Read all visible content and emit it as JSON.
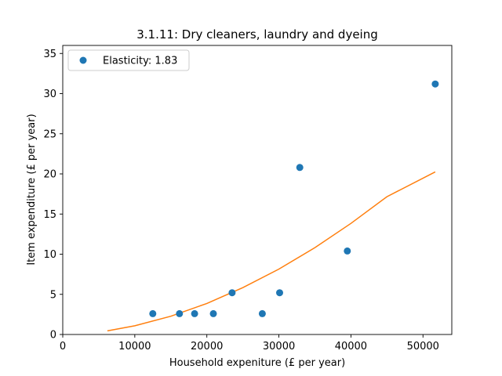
{
  "chart_data": {
    "type": "scatter",
    "title": "3.1.11: Dry cleaners, laundry and dyeing",
    "xlabel": "Household expeniture (£ per year)",
    "ylabel": "Item expenditure (£ per year)",
    "xlim": [
      0,
      54000
    ],
    "ylim": [
      0,
      36
    ],
    "xticks": [
      0,
      10000,
      20000,
      30000,
      40000,
      50000
    ],
    "yticks": [
      0,
      5,
      10,
      15,
      20,
      25,
      30,
      35
    ],
    "legend_position": "top-left",
    "colors": {
      "points": "#1f77b4",
      "fit": "#ff7f0e"
    },
    "series": [
      {
        "name": "Elasticity: 1.83",
        "type": "scatter",
        "x": [
          12500,
          16200,
          18300,
          20900,
          23500,
          27700,
          30100,
          32900,
          39500,
          51700
        ],
        "y": [
          2.6,
          2.6,
          2.6,
          2.6,
          5.2,
          2.6,
          5.2,
          20.8,
          10.4,
          31.2
        ]
      },
      {
        "type": "line",
        "x": [
          6200,
          10000,
          15000,
          20000,
          25000,
          30000,
          35000,
          40000,
          45000,
          51700
        ],
        "y": [
          0.45,
          1.08,
          2.27,
          3.86,
          5.83,
          8.15,
          10.82,
          13.83,
          17.16,
          20.25
        ]
      }
    ]
  }
}
